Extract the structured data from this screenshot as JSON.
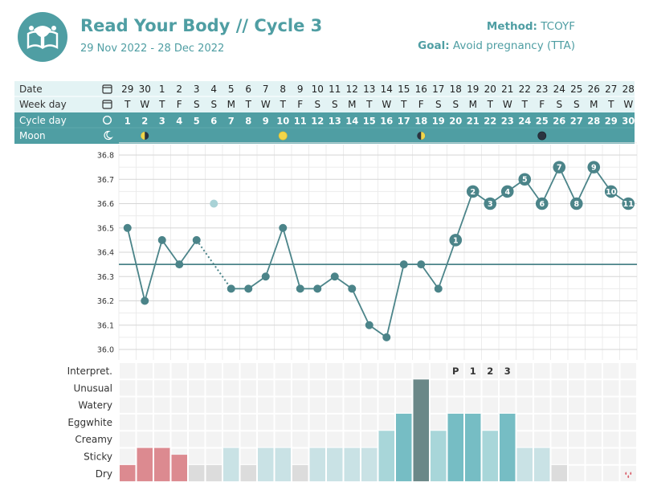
{
  "header": {
    "title": "Read Your Body // Cycle 3",
    "date_range": "29 Nov 2022 - 28 Dec 2022",
    "method_label": "Method:",
    "method_value": "TCOYF",
    "goal_label": "Goal:",
    "goal_value": "Avoid pregnancy (TTA)"
  },
  "colors": {
    "teal": "#4f9ea3",
    "teal_dark": "#3f7f84",
    "row_light": "#e3f3f4",
    "point": "#4b8489",
    "coverline": "#4b8489",
    "faded_point": "#a9d2d6",
    "bleeding": "#dc8a90",
    "dry": "#dcdcdc",
    "sticky": "#c9e2e5",
    "creamy": "#a8d6d9",
    "eggwhite": "#76bdc4",
    "unusual": "#6b8888",
    "drop": "#d95b67"
  },
  "rows": {
    "date_label": "Date",
    "weekday_label": "Week day",
    "cycleday_label": "Cycle day",
    "moon_label": "Moon"
  },
  "icons": {
    "date": "calendar-icon",
    "weekday": "calendar-icon",
    "cycleday": "circle-icon",
    "moon": "moon-icon",
    "bleeding_end": "blood-drops-icon",
    "logo": "book-uterus-icon"
  },
  "days": {
    "dates": [
      "29",
      "30",
      "1",
      "2",
      "3",
      "4",
      "5",
      "6",
      "7",
      "8",
      "9",
      "10",
      "11",
      "12",
      "13",
      "14",
      "15",
      "16",
      "17",
      "18",
      "19",
      "20",
      "21",
      "22",
      "23",
      "24",
      "25",
      "26",
      "27",
      "28"
    ],
    "weekdays": [
      "T",
      "W",
      "T",
      "F",
      "S",
      "S",
      "M",
      "T",
      "W",
      "T",
      "F",
      "S",
      "S",
      "M",
      "T",
      "W",
      "T",
      "F",
      "S",
      "S",
      "M",
      "T",
      "W",
      "T",
      "F",
      "S",
      "S",
      "M",
      "T",
      "W"
    ],
    "cycle_days": [
      "1",
      "2",
      "3",
      "4",
      "5",
      "6",
      "7",
      "8",
      "9",
      "10",
      "11",
      "12",
      "13",
      "14",
      "15",
      "16",
      "17",
      "18",
      "19",
      "20",
      "21",
      "22",
      "23",
      "24",
      "25",
      "26",
      "27",
      "28",
      "29",
      "30"
    ],
    "moon_phases": [
      {
        "cycle_day": 2,
        "phase": "last-quarter"
      },
      {
        "cycle_day": 10,
        "phase": "full"
      },
      {
        "cycle_day": 18,
        "phase": "first-quarter"
      },
      {
        "cycle_day": 25,
        "phase": "new"
      }
    ]
  },
  "chart_data": {
    "type": "line",
    "title": "",
    "xlabel": "",
    "ylabel": "",
    "x": [
      1,
      2,
      3,
      4,
      5,
      6,
      7,
      8,
      9,
      10,
      11,
      12,
      13,
      14,
      15,
      16,
      17,
      18,
      19,
      20,
      21,
      22,
      23,
      24,
      25,
      26,
      27,
      28,
      29,
      30
    ],
    "y_ticks": [
      "36.8",
      "36.7",
      "36.6",
      "36.5",
      "36.4",
      "36.3",
      "36.2",
      "36.1",
      "36.0"
    ],
    "ylim": [
      36.0,
      36.8
    ],
    "series": [
      {
        "values": [
          36.5,
          36.2,
          36.45,
          36.35,
          36.45,
          36.6,
          36.25,
          36.25,
          36.3,
          36.5,
          36.25,
          36.25,
          36.3,
          36.25,
          36.1,
          36.05,
          36.35,
          36.35,
          36.25,
          36.45,
          36.65,
          36.6,
          36.65,
          36.7,
          36.6,
          36.75,
          36.6,
          36.75,
          36.65,
          36.6
        ],
        "excluded_days": [
          6
        ],
        "dotted_segment": [
          5,
          7
        ],
        "post_shift_labels": {
          "20": "1",
          "21": "2",
          "22": "3",
          "23": "4",
          "24": "5",
          "25": "6",
          "26": "7",
          "27": "8",
          "28": "9",
          "29": "10",
          "30": "11"
        }
      }
    ],
    "coverline": 36.35,
    "grid": true
  },
  "mucus": {
    "row_labels": [
      "Interpret.",
      "Unusual",
      "Watery",
      "Eggwhite",
      "Creamy",
      "Sticky",
      "Dry"
    ],
    "levels": [
      1,
      2,
      2,
      1.6,
      1,
      1,
      2,
      1,
      2,
      2,
      1,
      2,
      2,
      2,
      2,
      3,
      4,
      6,
      3,
      4,
      4,
      3,
      4,
      2,
      2,
      1,
      0,
      0,
      0,
      0
    ],
    "kinds": [
      "bleeding",
      "bleeding",
      "bleeding",
      "bleeding",
      "dry",
      "dry",
      "sticky",
      "dry",
      "sticky",
      "sticky",
      "dry",
      "sticky",
      "sticky",
      "sticky",
      "sticky",
      "creamy",
      "eggwhite",
      "unusual",
      "creamy",
      "eggwhite",
      "eggwhite",
      "creamy",
      "eggwhite",
      "sticky",
      "sticky",
      "dry",
      "none",
      "none",
      "none",
      "none"
    ],
    "interpretations": [
      {
        "cycle_day": 20,
        "text": "P"
      },
      {
        "cycle_day": 21,
        "text": "1"
      },
      {
        "cycle_day": 22,
        "text": "2"
      },
      {
        "cycle_day": 23,
        "text": "3"
      }
    ],
    "drops_day": 30
  }
}
